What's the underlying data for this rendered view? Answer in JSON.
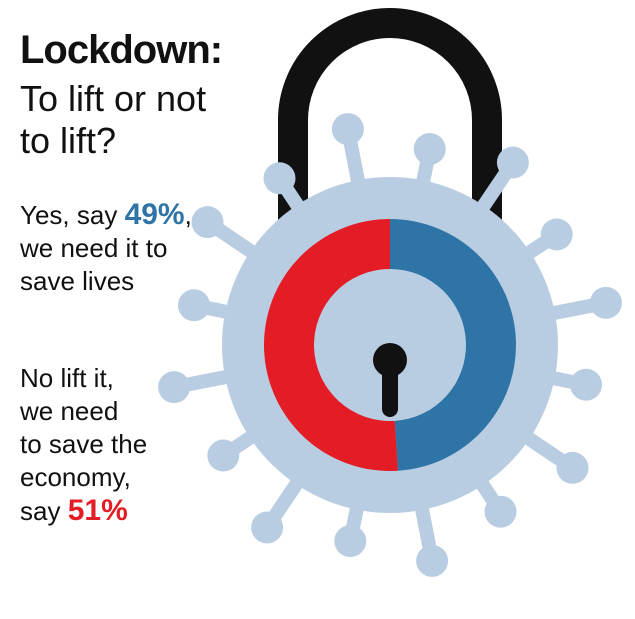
{
  "chart_data": {
    "type": "donut",
    "title": "Lockdown:",
    "subtitle": "To lift or not to lift?",
    "values": [
      49,
      51
    ],
    "value_labels": [
      "49%",
      "51%"
    ],
    "colors": [
      "#2f74a6",
      "#e31c25"
    ],
    "annotations": [
      {
        "lead": "Yes, say",
        "tail": ",",
        "lines": [
          "we need it to",
          "save lives"
        ]
      },
      {
        "lines": [
          "No lift it,",
          "we need",
          "to save the",
          "economy,"
        ],
        "lead": "say"
      }
    ]
  }
}
